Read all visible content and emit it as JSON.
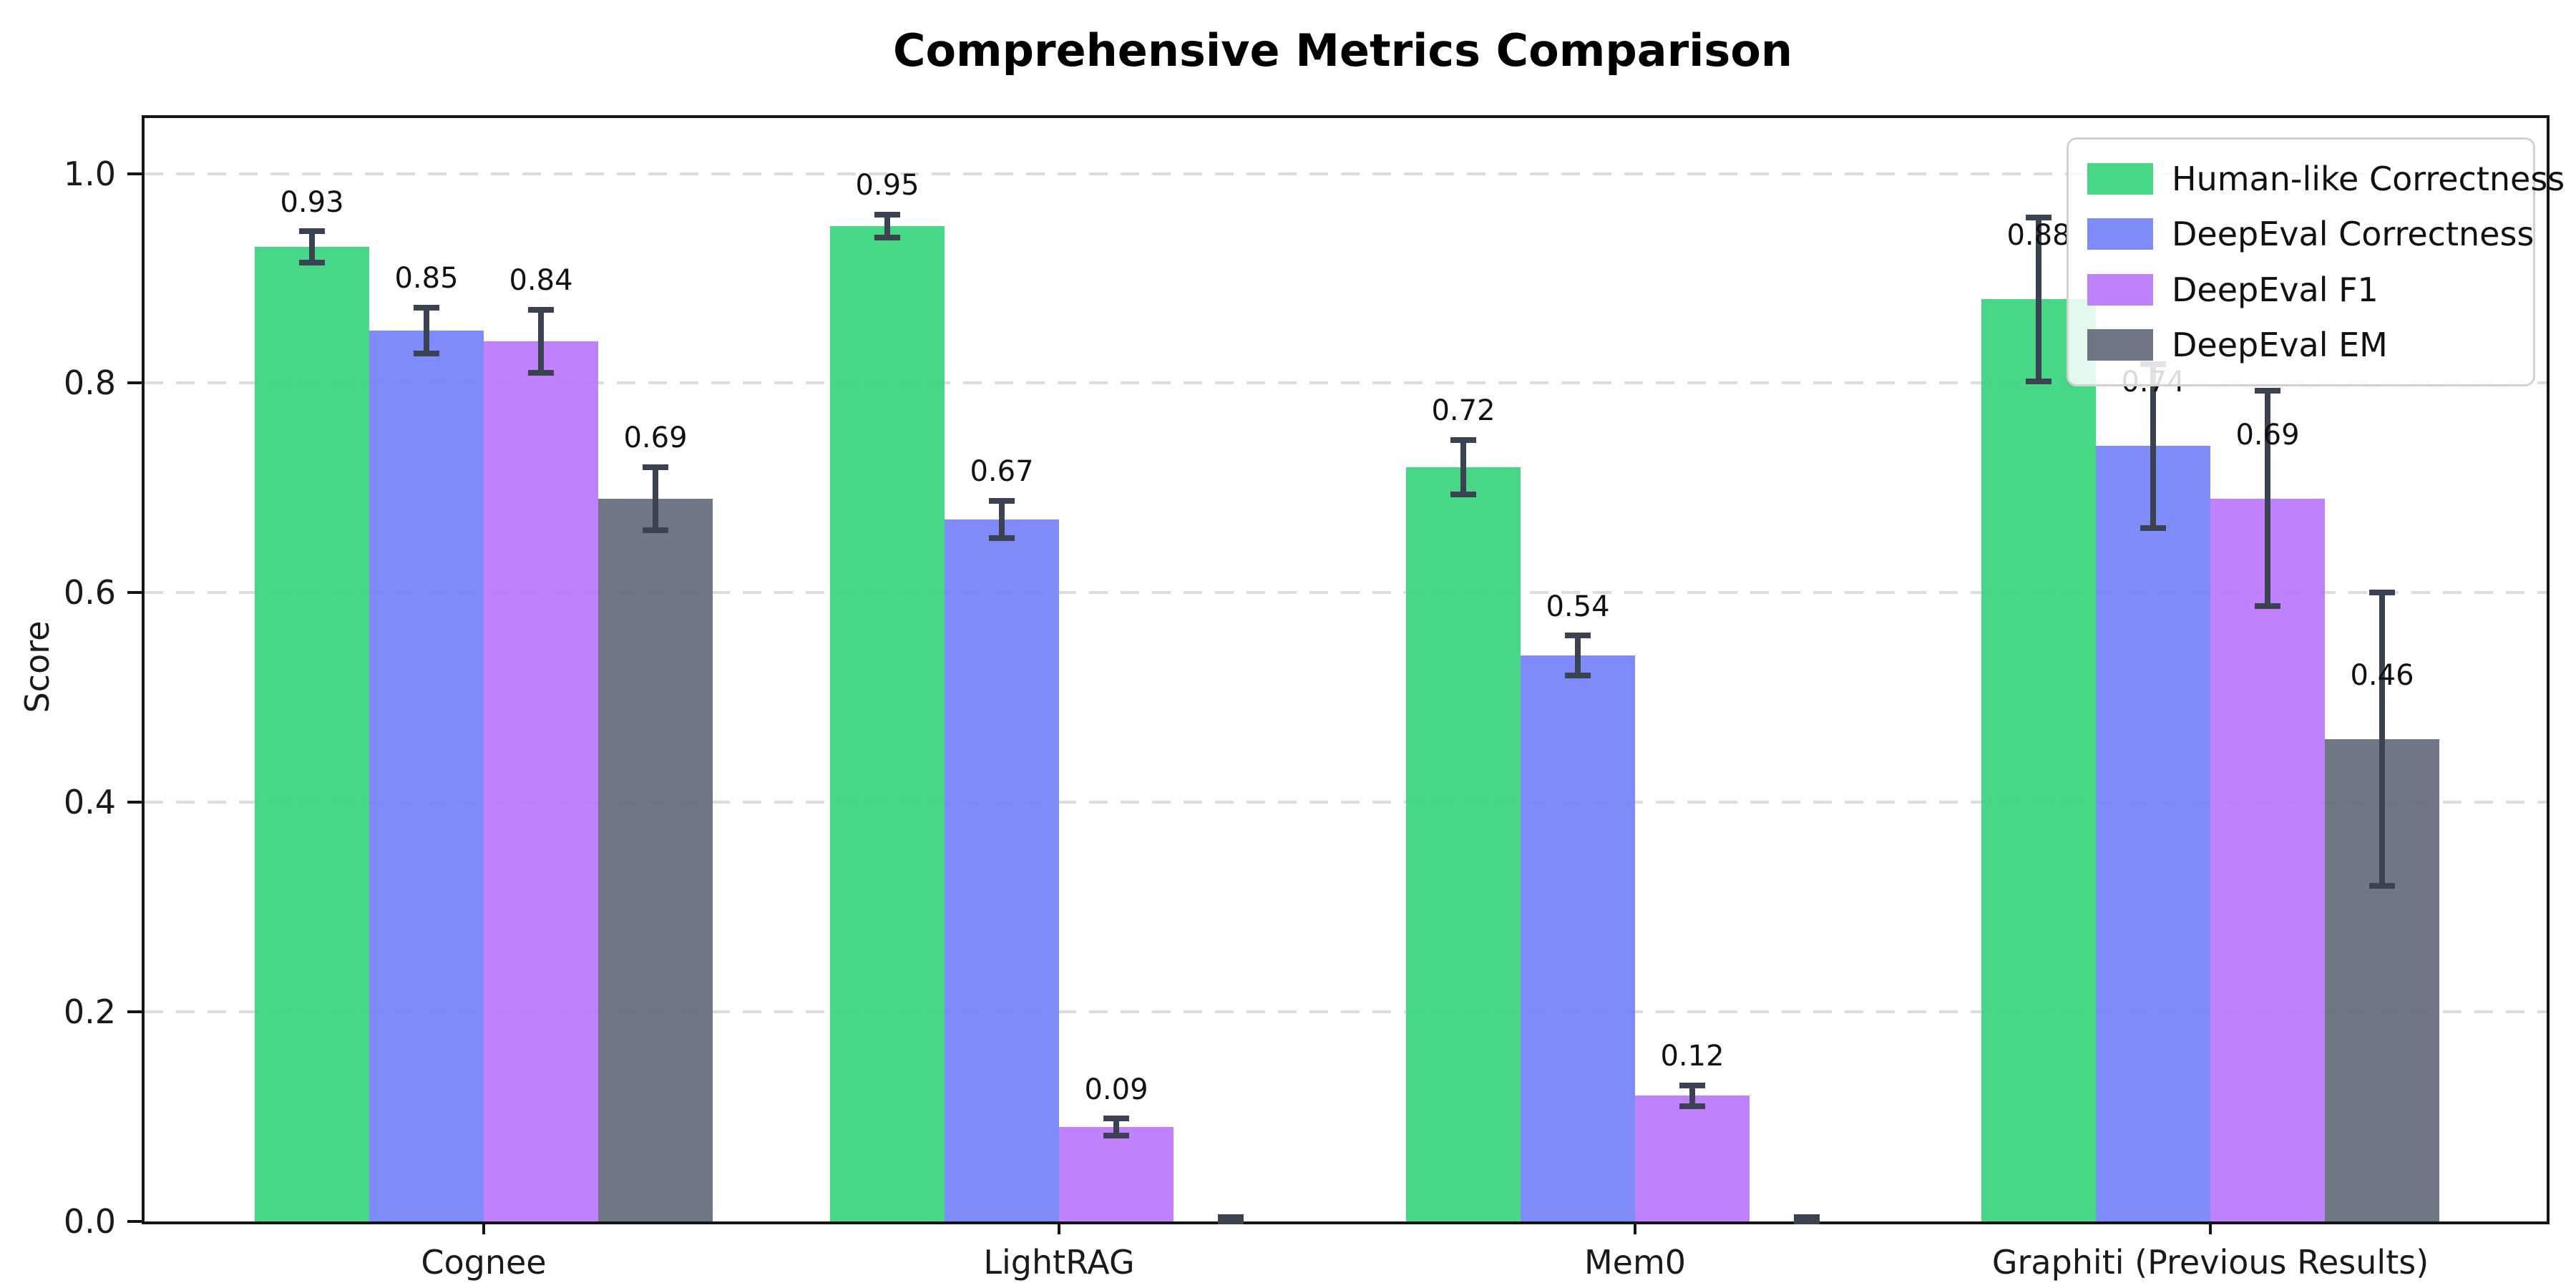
{
  "title": "Comprehensive Metrics Comparison",
  "chart_data": {
    "type": "bar",
    "title": "Comprehensive Metrics Comparison",
    "xlabel": "",
    "ylabel": "Score",
    "ylim": [
      0,
      1.053
    ],
    "yticks": [
      0.0,
      0.2,
      0.4,
      0.6,
      0.8,
      1.0
    ],
    "grid": "horizontal-dashed",
    "legend_position": "upper-right",
    "categories": [
      "Cognee",
      "LightRAG",
      "Mem0",
      "Graphiti (Previous Results)"
    ],
    "series": [
      {
        "name": "Human-like Correctness",
        "color": "rgba(52,211,122,0.9)",
        "values": [
          0.93,
          0.95,
          0.72,
          0.88
        ],
        "errors": [
          0.015,
          0.011,
          0.026,
          0.078
        ]
      },
      {
        "name": "DeepEval Correctness",
        "color": "rgba(113,126,247,0.9)",
        "values": [
          0.85,
          0.67,
          0.54,
          0.74
        ],
        "errors": [
          0.022,
          0.018,
          0.019,
          0.078
        ]
      },
      {
        "name": "DeepEval F1",
        "color": "rgba(185,115,252,0.9)",
        "values": [
          0.84,
          0.09,
          0.12,
          0.69
        ],
        "errors": [
          0.03,
          0.008,
          0.01,
          0.103
        ]
      },
      {
        "name": "DeepEval EM",
        "color": "rgba(95,103,119,0.9)",
        "values": [
          0.69,
          0.0,
          0.0,
          0.46
        ],
        "errors": [
          0.03,
          0.004,
          0.004,
          0.14
        ]
      }
    ],
    "value_label_format": "2-decimals",
    "error_bar_color": "#3b4252",
    "colors": {
      "human_like_correctness": "#4ade80",
      "deepeval_correctness": "#818cf8",
      "deepeval_f1": "#c084fc",
      "deepeval_em": "#6b7280"
    }
  }
}
